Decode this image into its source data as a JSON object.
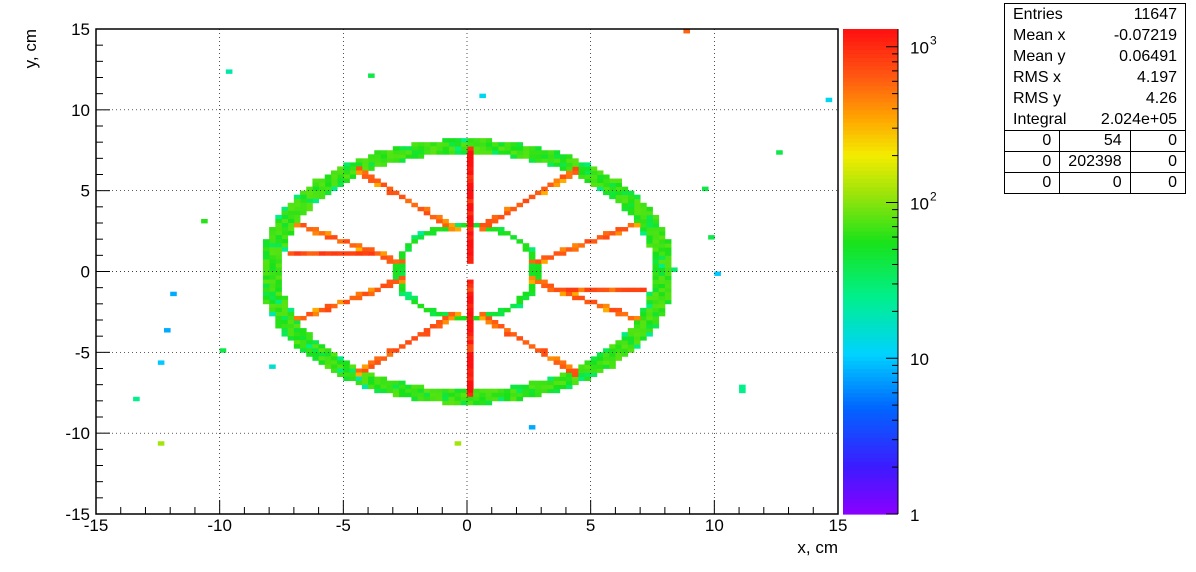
{
  "chart_data": {
    "type": "heatmap",
    "xlabel": "x, cm",
    "ylabel": "y, cm",
    "xlim": [
      -15,
      15
    ],
    "ylim": [
      -15,
      15
    ],
    "bin_width": 0.25,
    "grid": true,
    "x_ticks": [
      "-15",
      "-10",
      "-5",
      "0",
      "5",
      "10",
      "15"
    ],
    "y_ticks": [
      "-15",
      "-10",
      "-5",
      "0",
      "5",
      "10",
      "15"
    ],
    "colorscale": {
      "log": true,
      "range": [
        1,
        1300
      ],
      "ticks": [
        {
          "label": "1",
          "value": 1
        },
        {
          "label": "10",
          "value": 10
        },
        {
          "label": "10",
          "exp": "2",
          "value": 100
        },
        {
          "label": "10",
          "exp": "3",
          "value": 1000
        }
      ]
    },
    "structure": {
      "ring_center": [
        0,
        0
      ],
      "ring_rx": 8.0,
      "ring_ry": 7.8,
      "ring_level": 40,
      "spokes": [
        {
          "from": [
            0,
            0.6
          ],
          "to": [
            0,
            7.6
          ],
          "level": 1000
        },
        {
          "from": [
            0,
            -0.6
          ],
          "to": [
            0,
            -7.6
          ],
          "level": 1000
        },
        {
          "from": [
            0.5,
            2.6
          ],
          "to": [
            4.4,
            6.3
          ],
          "level": 500
        },
        {
          "from": [
            -0.5,
            2.6
          ],
          "to": [
            -4.4,
            6.3
          ],
          "level": 500
        },
        {
          "from": [
            0.5,
            -2.6
          ],
          "to": [
            4.4,
            -6.3
          ],
          "level": 500
        },
        {
          "from": [
            -0.5,
            -2.6
          ],
          "to": [
            -4.4,
            -6.3
          ],
          "level": 500
        },
        {
          "from": [
            2.6,
            0.5
          ],
          "to": [
            6.8,
            2.9
          ],
          "level": 500
        },
        {
          "from": [
            -2.6,
            0.5
          ],
          "to": [
            -6.8,
            2.9
          ],
          "level": 500
        },
        {
          "from": [
            2.6,
            -0.5
          ],
          "to": [
            6.8,
            -2.9
          ],
          "level": 500
        },
        {
          "from": [
            -2.6,
            -0.5
          ],
          "to": [
            -6.8,
            -2.9
          ],
          "level": 500
        },
        {
          "from": [
            -3.4,
            1.2
          ],
          "to": [
            -7.2,
            1.2
          ],
          "level": 600
        },
        {
          "from": [
            3.4,
            -1.2
          ],
          "to": [
            7.2,
            -1.2
          ],
          "level": 600
        },
        {
          "from": [
            2.7,
            1.0
          ],
          "to": [
            2.7,
            -1.0
          ],
          "level": 40
        },
        {
          "from": [
            -2.7,
            1.0
          ],
          "to": [
            -2.7,
            -1.0
          ],
          "level": 40
        }
      ],
      "inner_ring": {
        "rx": 2.8,
        "ry": 2.9,
        "level": 40
      }
    },
    "outliers": [
      {
        "x": 8.75,
        "y": 14.9,
        "value": 600
      },
      {
        "x": -9.6,
        "y": 12.4,
        "value": 20
      },
      {
        "x": -4.0,
        "y": 12.1,
        "value": 40
      },
      {
        "x": 14.5,
        "y": 10.5,
        "value": 12
      },
      {
        "x": 0.5,
        "y": 10.9,
        "value": 12
      },
      {
        "x": 12.7,
        "y": 7.3,
        "value": 40
      },
      {
        "x": 9.6,
        "y": 5.1,
        "value": 40
      },
      {
        "x": -10.7,
        "y": 3.2,
        "value": 60
      },
      {
        "x": -12.0,
        "y": -1.5,
        "value": 8
      },
      {
        "x": -12.2,
        "y": -3.6,
        "value": 8
      },
      {
        "x": -12.3,
        "y": -5.6,
        "value": 10
      },
      {
        "x": -13.3,
        "y": -8.0,
        "value": 25
      },
      {
        "x": -12.4,
        "y": -10.7,
        "value": 120
      },
      {
        "x": -0.5,
        "y": -10.7,
        "value": 120
      },
      {
        "x": 11.2,
        "y": -7.2,
        "value": 25
      },
      {
        "x": 11.2,
        "y": -7.5,
        "value": 25
      },
      {
        "x": 9.9,
        "y": 2.0,
        "value": 40
      },
      {
        "x": 10.0,
        "y": -0.1,
        "value": 10
      },
      {
        "x": -9.9,
        "y": -4.8,
        "value": 40
      },
      {
        "x": -8.0,
        "y": -6.0,
        "value": 15
      },
      {
        "x": 2.5,
        "y": -9.6,
        "value": 8
      }
    ]
  },
  "stats": {
    "rows": [
      {
        "label": "Entries",
        "value": "11647"
      },
      {
        "label": "Mean x",
        "value": "-0.07219"
      },
      {
        "label": "Mean y",
        "value": "0.06491"
      },
      {
        "label": "RMS x",
        "value": "4.197"
      },
      {
        "label": "RMS y",
        "value": "4.26"
      },
      {
        "label": "Integral",
        "value": "2.024e+05"
      }
    ],
    "grid": [
      [
        "0",
        "54",
        "0"
      ],
      [
        "0",
        "202398",
        "0"
      ],
      [
        "0",
        "0",
        "0"
      ]
    ]
  }
}
